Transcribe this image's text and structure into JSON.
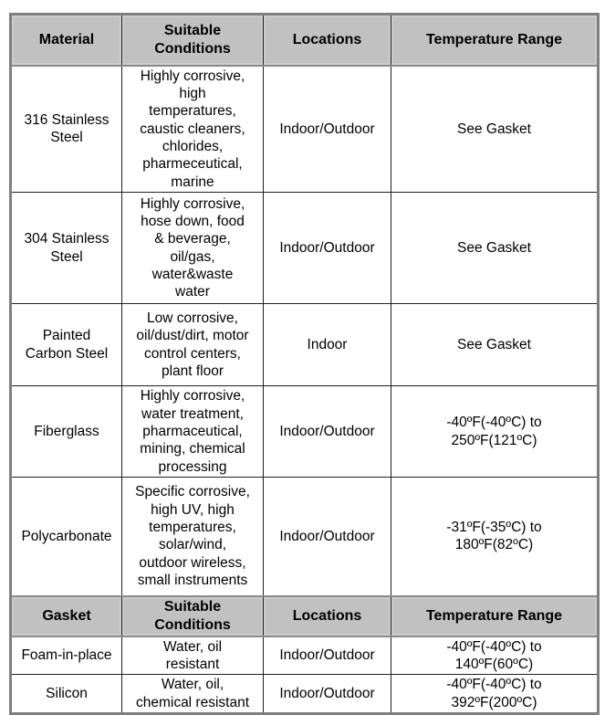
{
  "colors": {
    "header_background": "#c1c1c1",
    "outer_border": "#7f7f7f",
    "cell_border": "#1f1f1f",
    "text": "#000000"
  },
  "table": {
    "materials": {
      "header": {
        "material": "Material",
        "conditions": "Suitable\nConditions",
        "locations": "Locations",
        "temperature": "Temperature Range"
      },
      "rows": [
        {
          "material": "316 Stainless\nSteel",
          "conditions": "Highly corrosive,\nhigh\ntemperatures,\ncaustic cleaners,\nchlorides,\npharmeceutical,\nmarine",
          "locations": "Indoor/Outdoor",
          "temperature": "See Gasket"
        },
        {
          "material": "304 Stainless\nSteel",
          "conditions": "Highly corrosive,\nhose down, food\n& beverage,\noil/gas,\nwater&waste\nwater",
          "locations": "Indoor/Outdoor",
          "temperature": "See Gasket"
        },
        {
          "material": "Painted\nCarbon Steel",
          "conditions": "Low corrosive,\noil/dust/dirt, motor\ncontrol centers,\nplant floor",
          "locations": "Indoor",
          "temperature": "See Gasket"
        },
        {
          "material": "Fiberglass",
          "conditions": "Highly corrosive,\nwater treatment,\npharmaceutical,\nmining, chemical\nprocessing",
          "locations": "Indoor/Outdoor",
          "temperature": "-40ºF(-40ºC) to\n250ºF(121ºC)"
        },
        {
          "material": "Polycarbonate",
          "conditions": "Specific corrosive,\nhigh UV, high\ntemperatures,\nsolar/wind,\noutdoor wireless,\nsmall instruments",
          "locations": "Indoor/Outdoor",
          "temperature": "-31ºF(-35ºC) to\n180ºF(82ºC)"
        }
      ]
    },
    "gaskets": {
      "header": {
        "gasket": "Gasket",
        "conditions": "Suitable\nConditions",
        "locations": "Locations",
        "temperature": "Temperature Range"
      },
      "rows": [
        {
          "gasket": "Foam-in-place",
          "conditions": "Water, oil\nresistant",
          "locations": "Indoor/Outdoor",
          "temperature": "-40ºF(-40ºC) to\n140ºF(60ºC)"
        },
        {
          "gasket": "Silicon",
          "conditions": "Water, oil,\nchemical resistant",
          "locations": "Indoor/Outdoor",
          "temperature": "-40ºF(-40ºC) to\n392ºF(200ºC)"
        }
      ]
    }
  }
}
